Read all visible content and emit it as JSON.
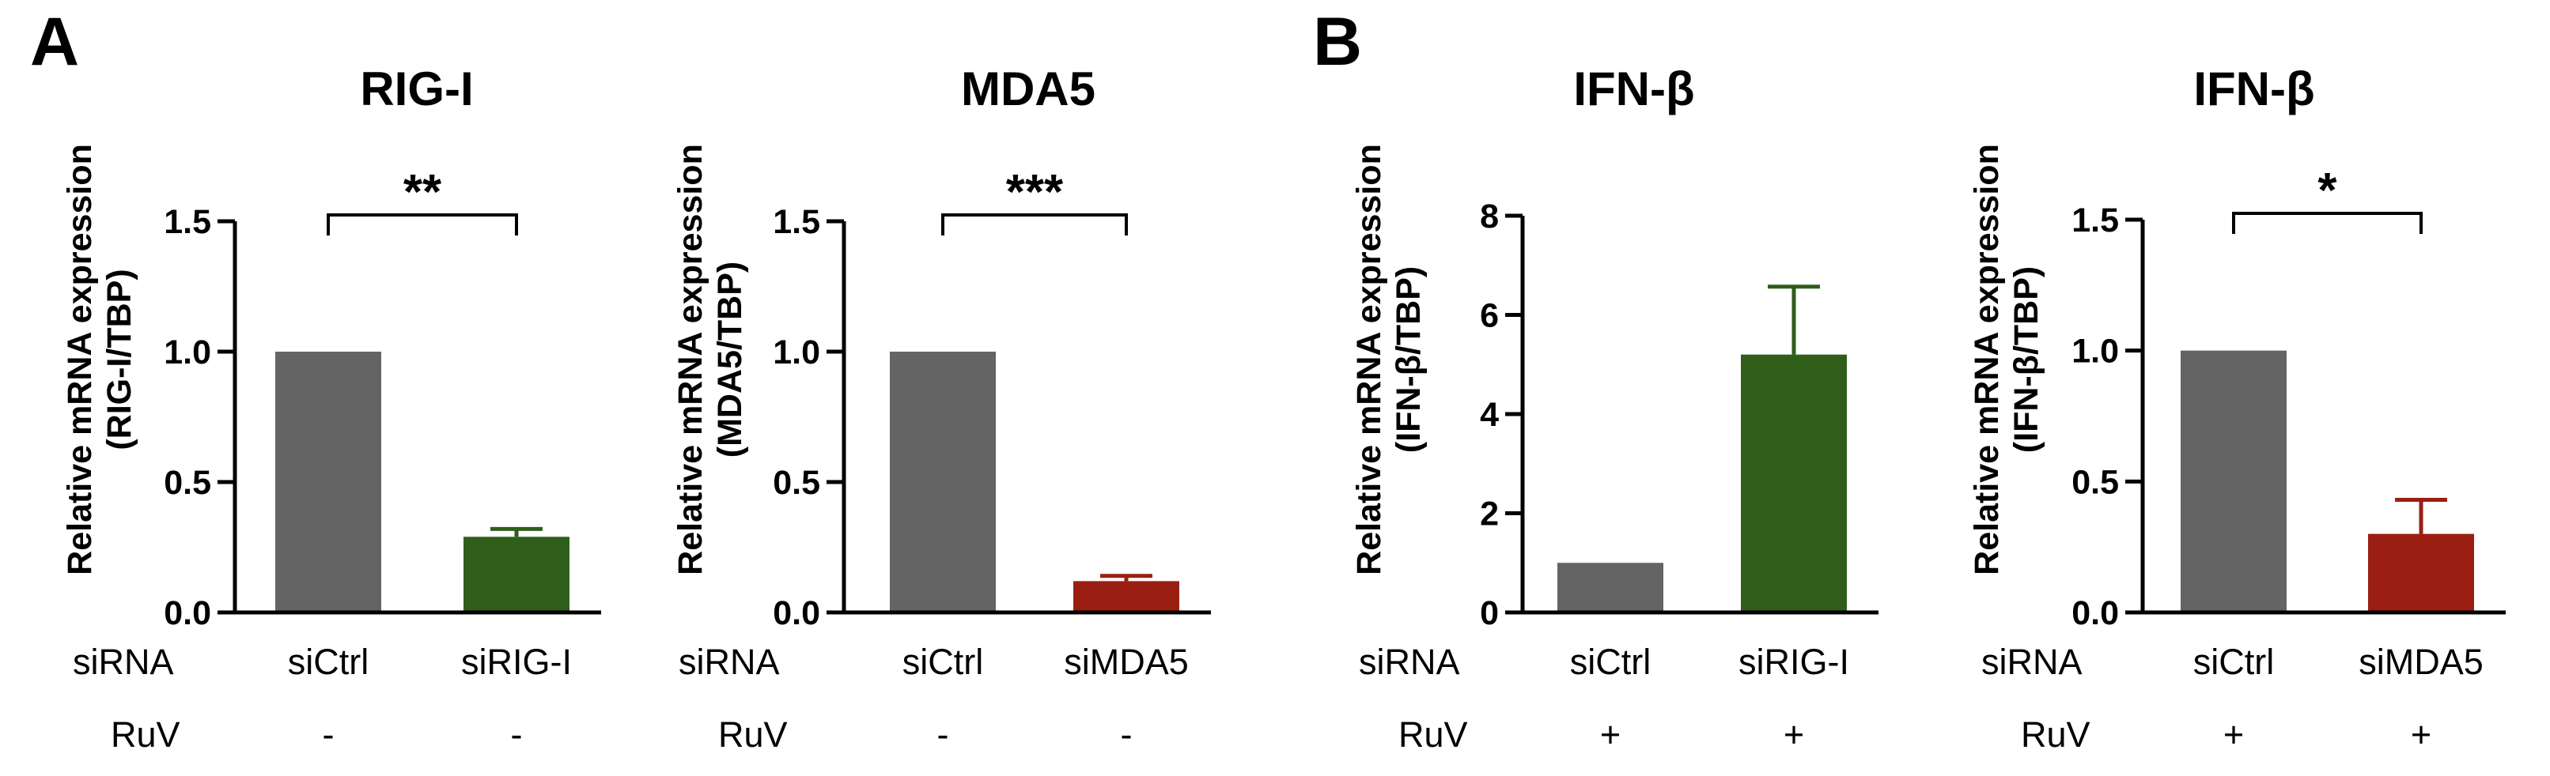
{
  "panels": [
    {
      "letter": "A"
    },
    {
      "letter": "B"
    }
  ],
  "row_labels": {
    "sirna": "siRNA",
    "ruv": "RuV"
  },
  "colors": {
    "control": "#646464",
    "sirig": "#2f5e1b",
    "simda5": "#9a1f12",
    "axis": "#000000"
  },
  "chart_data": [
    {
      "type": "bar",
      "panel": "A",
      "title": "RIG-I",
      "ylabel_lines": [
        "Relative mRNA expression",
        "(RIG-I/TBP)"
      ],
      "ylim": [
        0,
        1.5
      ],
      "yticks": [
        0,
        0.5,
        1.0,
        1.5
      ],
      "ytick_labels": [
        "0.0",
        "0.5",
        "1.0",
        "1.5"
      ],
      "categories": [
        "siCtrl",
        "siRIG-I"
      ],
      "values": [
        1.0,
        0.29
      ],
      "errors": [
        0,
        0.03
      ],
      "bar_colors": [
        "control",
        "sirig"
      ],
      "ruv": [
        "-",
        "-"
      ],
      "significance": "**"
    },
    {
      "type": "bar",
      "panel": "A",
      "title": "MDA5",
      "ylabel_lines": [
        "Relative mRNA expression",
        "(MDA5/TBP)"
      ],
      "ylim": [
        0,
        1.5
      ],
      "yticks": [
        0,
        0.5,
        1.0,
        1.5
      ],
      "ytick_labels": [
        "0.0",
        "0.5",
        "1.0",
        "1.5"
      ],
      "categories": [
        "siCtrl",
        "siMDA5"
      ],
      "values": [
        1.0,
        0.12
      ],
      "errors": [
        0,
        0.02
      ],
      "bar_colors": [
        "control",
        "simda5"
      ],
      "ruv": [
        "-",
        "-"
      ],
      "significance": "***"
    },
    {
      "type": "bar",
      "panel": "B",
      "title": "IFN-β",
      "ylabel_lines": [
        "Relative mRNA expression",
        "(IFN-β/TBP)"
      ],
      "ylim": [
        0,
        8
      ],
      "yticks": [
        0,
        2,
        4,
        6,
        8
      ],
      "ytick_labels": [
        "0",
        "2",
        "4",
        "6",
        "8"
      ],
      "categories": [
        "siCtrl",
        "siRIG-I"
      ],
      "values": [
        1.0,
        5.2
      ],
      "errors": [
        0,
        1.37
      ],
      "bar_colors": [
        "control",
        "sirig"
      ],
      "ruv": [
        "+",
        "+"
      ],
      "significance": ""
    },
    {
      "type": "bar",
      "panel": "B",
      "title": "IFN-β",
      "ylabel_lines": [
        "Relative mRNA expression",
        "(IFN-β/TBP)"
      ],
      "ylim": [
        0,
        1.5
      ],
      "yticks": [
        0,
        0.5,
        1.0,
        1.5
      ],
      "ytick_labels": [
        "0.0",
        "0.5",
        "1.0",
        "1.5"
      ],
      "categories": [
        "siCtrl",
        "siMDA5"
      ],
      "values": [
        1.0,
        0.3
      ],
      "errors": [
        0,
        0.13
      ],
      "bar_colors": [
        "control",
        "simda5"
      ],
      "ruv": [
        "+",
        "+"
      ],
      "significance": "*"
    }
  ]
}
